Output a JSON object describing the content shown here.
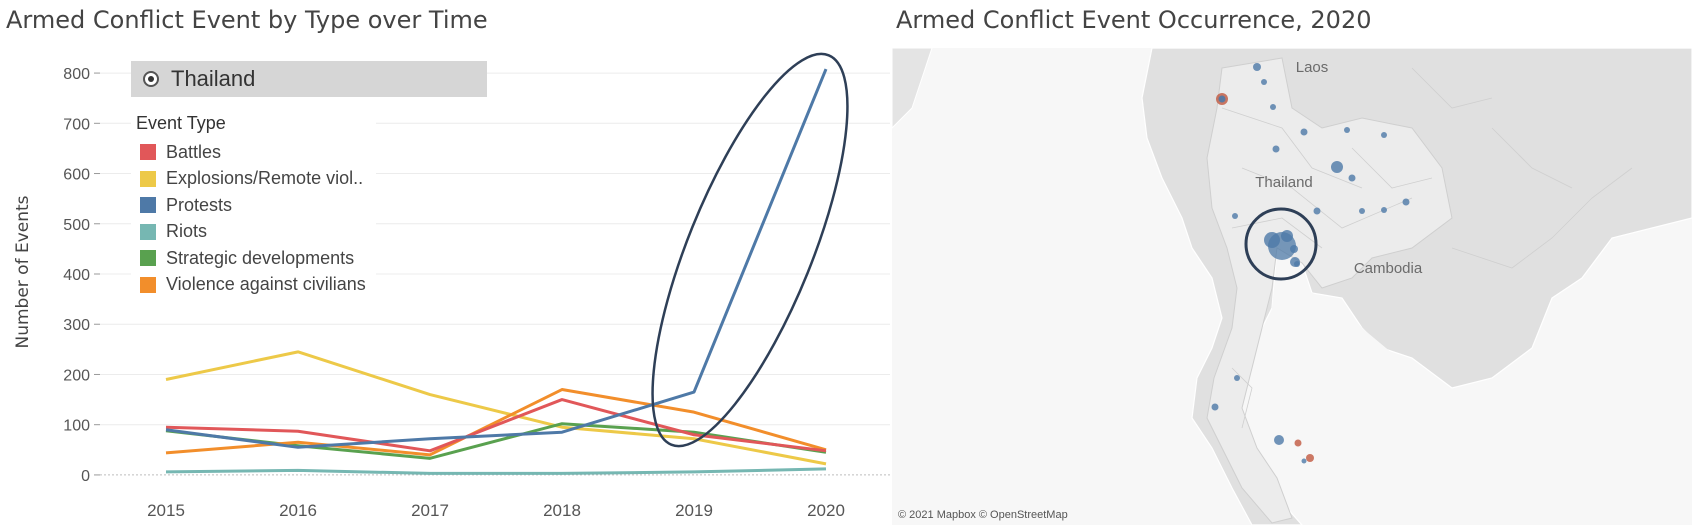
{
  "left_title": "Armed Conflict Event by Type over Time",
  "right_title": "Armed Conflict Event Occurrence, 2020",
  "filter": {
    "label": "Thailand",
    "icon": "radio-selected-icon"
  },
  "legend": {
    "title": "Event Type",
    "items": [
      {
        "label": "Battles",
        "color": "#e15759"
      },
      {
        "label": "Explosions/Remote viol..",
        "color": "#edc948"
      },
      {
        "label": "Protests",
        "color": "#4e79a7"
      },
      {
        "label": "Riots",
        "color": "#76b7b2"
      },
      {
        "label": "Strategic developments",
        "color": "#59a14f"
      },
      {
        "label": "Violence against civilians",
        "color": "#f28e2b"
      }
    ]
  },
  "chart_data": {
    "type": "line",
    "title": "Armed Conflict Event by Type over Time",
    "xlabel": "",
    "ylabel": "Number of Events",
    "x": [
      "2015",
      "2016",
      "2017",
      "2018",
      "2019",
      "2020"
    ],
    "ylim": [
      -30,
      830
    ],
    "yticks": [
      0,
      100,
      200,
      300,
      400,
      500,
      600,
      700,
      800
    ],
    "grid": true,
    "legend_position": "top-left",
    "series": [
      {
        "name": "Explosions/Remote viol..",
        "color": "#edc948",
        "values": [
          190,
          245,
          160,
          95,
          72,
          22
        ]
      },
      {
        "name": "Riots",
        "color": "#76b7b2",
        "values": [
          6,
          9,
          3,
          3,
          6,
          12
        ]
      },
      {
        "name": "Strategic developments",
        "color": "#59a14f",
        "values": [
          88,
          58,
          33,
          102,
          85,
          45
        ]
      },
      {
        "name": "Violence against civilians",
        "color": "#f28e2b",
        "values": [
          44,
          65,
          40,
          170,
          125,
          50
        ]
      },
      {
        "name": "Battles",
        "color": "#e15759",
        "values": [
          95,
          87,
          48,
          150,
          80,
          48
        ]
      },
      {
        "name": "Protests",
        "color": "#4e79a7",
        "values": [
          90,
          55,
          72,
          85,
          165,
          808
        ]
      }
    ],
    "annotation": {
      "type": "ellipse",
      "target_series": "Protests",
      "target_x": [
        "2019",
        "2020"
      ]
    }
  },
  "map": {
    "labels": [
      "Laos",
      "Thailand",
      "Cambodia"
    ],
    "attribution": "© 2021 Mapbox © OpenStreetMap",
    "marker_colors": {
      "protest": "#4e79a7",
      "violence": "#c0573f"
    },
    "annotation": "circle around Bangkok cluster"
  }
}
